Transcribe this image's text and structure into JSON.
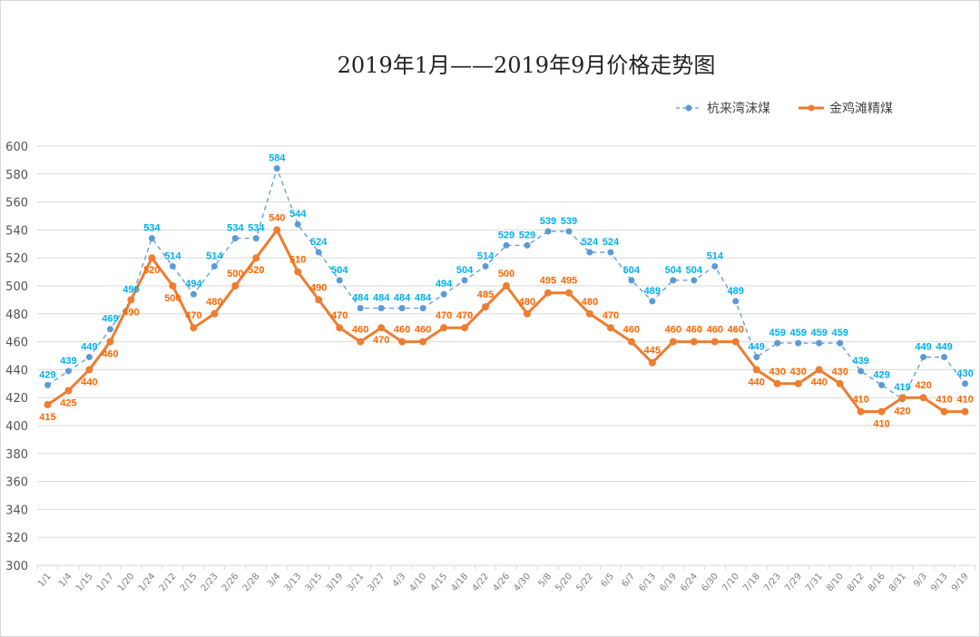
{
  "chart_data": {
    "type": "line",
    "title": "2019年1月——2019年9月价格走势图",
    "categories": [
      "1/1",
      "1/4",
      "1/15",
      "1/17",
      "1/20",
      "1/24",
      "2/12",
      "2/15",
      "2/23",
      "2/26",
      "2/28",
      "3/4",
      "3/13",
      "3/15",
      "3/19",
      "3/21",
      "3/27",
      "4/3",
      "4/10",
      "4/15",
      "4/18",
      "4/22",
      "4/26",
      "4/30",
      "5/8",
      "5/20",
      "5/22",
      "6/5",
      "6/7",
      "6/13",
      "6/19",
      "6/24",
      "6/30",
      "7/10",
      "7/18",
      "7/23",
      "7/29",
      "7/31",
      "8/10",
      "8/12",
      "8/16",
      "8/31",
      "9/3",
      "9/13",
      "9/19"
    ],
    "series": [
      {
        "name": "杭来湾沫煤",
        "color": "#5b9bd5",
        "label_color": "#00b0f0",
        "style": "dashed-markers",
        "values": [
          429,
          439,
          449,
          469,
          490,
          534,
          514,
          494,
          514,
          534,
          534,
          584,
          544,
          524,
          504,
          484,
          484,
          484,
          484,
          494,
          504,
          514,
          529,
          529,
          539,
          539,
          524,
          524,
          504,
          489,
          504,
          504,
          514,
          489,
          449,
          459,
          459,
          459,
          459,
          439,
          429,
          419,
          449,
          449,
          430
        ]
      },
      {
        "name": "金鸡滩精煤",
        "color": "#ed7d31",
        "label_color": "#ff6600",
        "style": "solid-markers",
        "values": [
          415,
          425,
          440,
          460,
          490,
          520,
          500,
          470,
          480,
          500,
          520,
          540,
          510,
          490,
          470,
          460,
          470,
          460,
          460,
          470,
          470,
          485,
          500,
          480,
          495,
          495,
          480,
          470,
          460,
          445,
          460,
          460,
          460,
          460,
          440,
          430,
          430,
          440,
          430,
          410,
          410,
          420,
          420,
          410,
          410
        ]
      }
    ],
    "ylim": [
      300,
      600
    ],
    "yticks": [
      300,
      320,
      340,
      360,
      380,
      400,
      420,
      440,
      460,
      480,
      500,
      520,
      540,
      560,
      580,
      600
    ],
    "grid": true,
    "legend": "top-right",
    "xlabel": "",
    "ylabel": ""
  }
}
